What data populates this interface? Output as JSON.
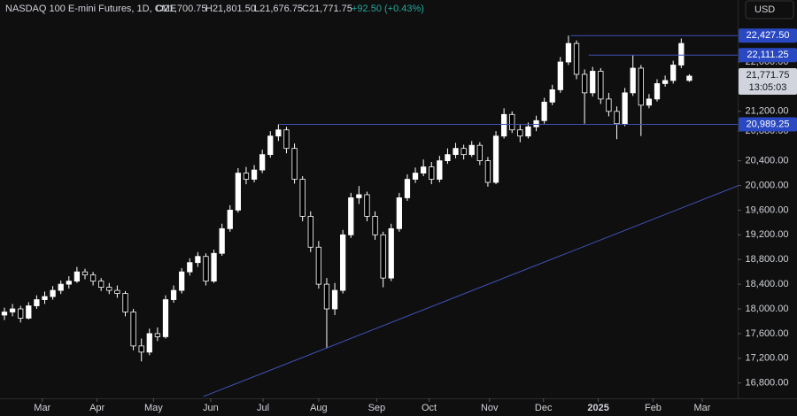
{
  "header": {
    "title": "NASDAQ 100 E-mini Futures, 1D, CME",
    "ohlc": [
      "O21,700.75",
      "H21,801.50",
      "L21,676.75",
      "C21,771.75"
    ],
    "change": "+92.50 (+0.43%)",
    "currency": "USD"
  },
  "chart_data": {
    "type": "candlestick",
    "up_color": "#ffffff",
    "down_color": "#000000",
    "line_color": "#3f51b5",
    "label_color": "#2948c2",
    "xlim": [
      -0.55,
      91
    ],
    "ylim": [
      16552,
      23004
    ],
    "xticks": [
      {
        "value": 4.7,
        "label": "Mar"
      },
      {
        "value": 11.5,
        "label": "Apr"
      },
      {
        "value": 18.5,
        "label": "May"
      },
      {
        "value": 25.6,
        "label": "Jun"
      },
      {
        "value": 32.1,
        "label": "Jul"
      },
      {
        "value": 39,
        "label": "Aug"
      },
      {
        "value": 46.2,
        "label": "Sep"
      },
      {
        "value": 52.7,
        "label": "Oct"
      },
      {
        "value": 60.2,
        "label": "Nov"
      },
      {
        "value": 66.9,
        "label": "Dec"
      },
      {
        "value": 73.7,
        "label": "2025"
      },
      {
        "value": 80.5,
        "label": "Feb"
      },
      {
        "value": 86.6,
        "label": "Mar"
      }
    ],
    "yticks": [
      {
        "value": 22000,
        "label": "22,000.00"
      },
      {
        "value": 21200,
        "label": "21,200.00"
      },
      {
        "value": 20880,
        "label": "20,880.00"
      },
      {
        "value": 20400,
        "label": "20,400.00"
      },
      {
        "value": 20000,
        "label": "20,000.00"
      },
      {
        "value": 19600,
        "label": "19,600.00"
      },
      {
        "value": 19200,
        "label": "19,200.00"
      },
      {
        "value": 18800,
        "label": "18,800.00"
      },
      {
        "value": 18400,
        "label": "18,400.00"
      },
      {
        "value": 18000,
        "label": "18,000.00"
      },
      {
        "value": 17600,
        "label": "17,600.00"
      },
      {
        "value": 17200,
        "label": "17,200.00"
      },
      {
        "value": 16800,
        "label": "16,800.00"
      }
    ],
    "candles": [
      [
        17900,
        18020,
        17820,
        17950
      ],
      [
        17950,
        18080,
        17880,
        18000
      ],
      [
        18000,
        18050,
        17780,
        17850
      ],
      [
        17850,
        18110,
        17830,
        18050
      ],
      [
        18050,
        18220,
        18000,
        18150
      ],
      [
        18150,
        18280,
        18080,
        18200
      ],
      [
        18200,
        18370,
        18150,
        18300
      ],
      [
        18300,
        18460,
        18240,
        18400
      ],
      [
        18400,
        18530,
        18330,
        18450
      ],
      [
        18450,
        18680,
        18420,
        18600
      ],
      [
        18600,
        18650,
        18480,
        18550
      ],
      [
        18550,
        18600,
        18380,
        18450
      ],
      [
        18450,
        18500,
        18290,
        18350
      ],
      [
        18350,
        18420,
        18240,
        18300
      ],
      [
        18300,
        18380,
        18180,
        18250
      ],
      [
        18250,
        18290,
        17880,
        17950
      ],
      [
        17950,
        18000,
        17330,
        17400
      ],
      [
        17400,
        17520,
        17150,
        17300
      ],
      [
        17300,
        17680,
        17250,
        17600
      ],
      [
        17600,
        17700,
        17480,
        17550
      ],
      [
        17550,
        18220,
        17520,
        18150
      ],
      [
        18150,
        18380,
        18100,
        18300
      ],
      [
        18300,
        18660,
        18250,
        18600
      ],
      [
        18600,
        18820,
        18540,
        18750
      ],
      [
        18750,
        18920,
        18680,
        18850
      ],
      [
        18850,
        18900,
        18380,
        18450
      ],
      [
        18450,
        18960,
        18420,
        18900
      ],
      [
        18900,
        19380,
        18860,
        19300
      ],
      [
        19300,
        19680,
        19250,
        19600
      ],
      [
        19600,
        20280,
        19560,
        20200
      ],
      [
        20200,
        20300,
        20020,
        20100
      ],
      [
        20100,
        20330,
        20050,
        20250
      ],
      [
        20250,
        20580,
        20200,
        20500
      ],
      [
        20500,
        20880,
        20450,
        20800
      ],
      [
        20800,
        20990,
        20720,
        20900
      ],
      [
        20900,
        20950,
        20520,
        20600
      ],
      [
        20600,
        20680,
        20030,
        20100
      ],
      [
        20100,
        20150,
        19420,
        19500
      ],
      [
        19500,
        19580,
        18920,
        19000
      ],
      [
        19000,
        19100,
        18330,
        18400
      ],
      [
        18400,
        18500,
        17360,
        18000
      ],
      [
        18000,
        18420,
        17900,
        18300
      ],
      [
        18300,
        19280,
        18250,
        19200
      ],
      [
        19200,
        19880,
        19150,
        19800
      ],
      [
        19800,
        19990,
        19700,
        19850
      ],
      [
        19850,
        19900,
        19420,
        19500
      ],
      [
        19500,
        19580,
        19120,
        19200
      ],
      [
        19200,
        19250,
        18350,
        18500
      ],
      [
        18500,
        19380,
        18450,
        19300
      ],
      [
        19300,
        19880,
        19250,
        19800
      ],
      [
        19800,
        20180,
        19750,
        20100
      ],
      [
        20100,
        20290,
        20040,
        20200
      ],
      [
        20200,
        20420,
        20150,
        20300
      ],
      [
        20300,
        20380,
        20020,
        20100
      ],
      [
        20100,
        20480,
        20050,
        20400
      ],
      [
        20400,
        20600,
        20350,
        20500
      ],
      [
        20500,
        20690,
        20440,
        20600
      ],
      [
        20600,
        20660,
        20420,
        20500
      ],
      [
        20500,
        20720,
        20460,
        20650
      ],
      [
        20650,
        20700,
        20330,
        20400
      ],
      [
        20400,
        20460,
        19980,
        20050
      ],
      [
        20050,
        20880,
        20020,
        20800
      ],
      [
        20800,
        21250,
        20760,
        21150
      ],
      [
        21150,
        21200,
        20850,
        20900
      ],
      [
        20900,
        20980,
        20700,
        20800
      ],
      [
        20800,
        21020,
        20760,
        20950
      ],
      [
        20950,
        21130,
        20880,
        21050
      ],
      [
        21050,
        21420,
        21000,
        21350
      ],
      [
        21350,
        21630,
        21300,
        21550
      ],
      [
        21550,
        22080,
        21500,
        22000
      ],
      [
        22000,
        22427,
        21950,
        22300
      ],
      [
        22300,
        22350,
        21720,
        21800
      ],
      [
        21800,
        21880,
        21000,
        21500
      ],
      [
        21500,
        21920,
        21440,
        21850
      ],
      [
        21850,
        21900,
        21320,
        21400
      ],
      [
        21400,
        21500,
        21120,
        21200
      ],
      [
        21200,
        21280,
        20750,
        21000
      ],
      [
        21000,
        21580,
        20960,
        21500
      ],
      [
        21500,
        22111,
        21450,
        21900
      ],
      [
        21900,
        21950,
        20800,
        21300
      ],
      [
        21300,
        21480,
        21250,
        21400
      ],
      [
        21400,
        21720,
        21360,
        21650
      ],
      [
        21650,
        21780,
        21600,
        21700
      ],
      [
        21700,
        22020,
        21650,
        21950
      ],
      [
        21950,
        22380,
        21900,
        22300
      ],
      [
        21700.75,
        21801.5,
        21676.75,
        21771.75
      ]
    ],
    "price_lines": [
      {
        "value": 22427.5,
        "label": "22,427.50",
        "start": 70.3
      },
      {
        "value": 22111.25,
        "label": "22,111.25",
        "start": 72.5
      },
      {
        "value": 20989.25,
        "label": "20,989.25",
        "start": 34.1
      }
    ],
    "trendline": {
      "start": [
        24.7,
        16581
      ],
      "end": [
        91,
        19993
      ]
    },
    "last_price": {
      "value": 21771.75,
      "label": "21,771.75",
      "countdown": "13:05:03"
    }
  }
}
